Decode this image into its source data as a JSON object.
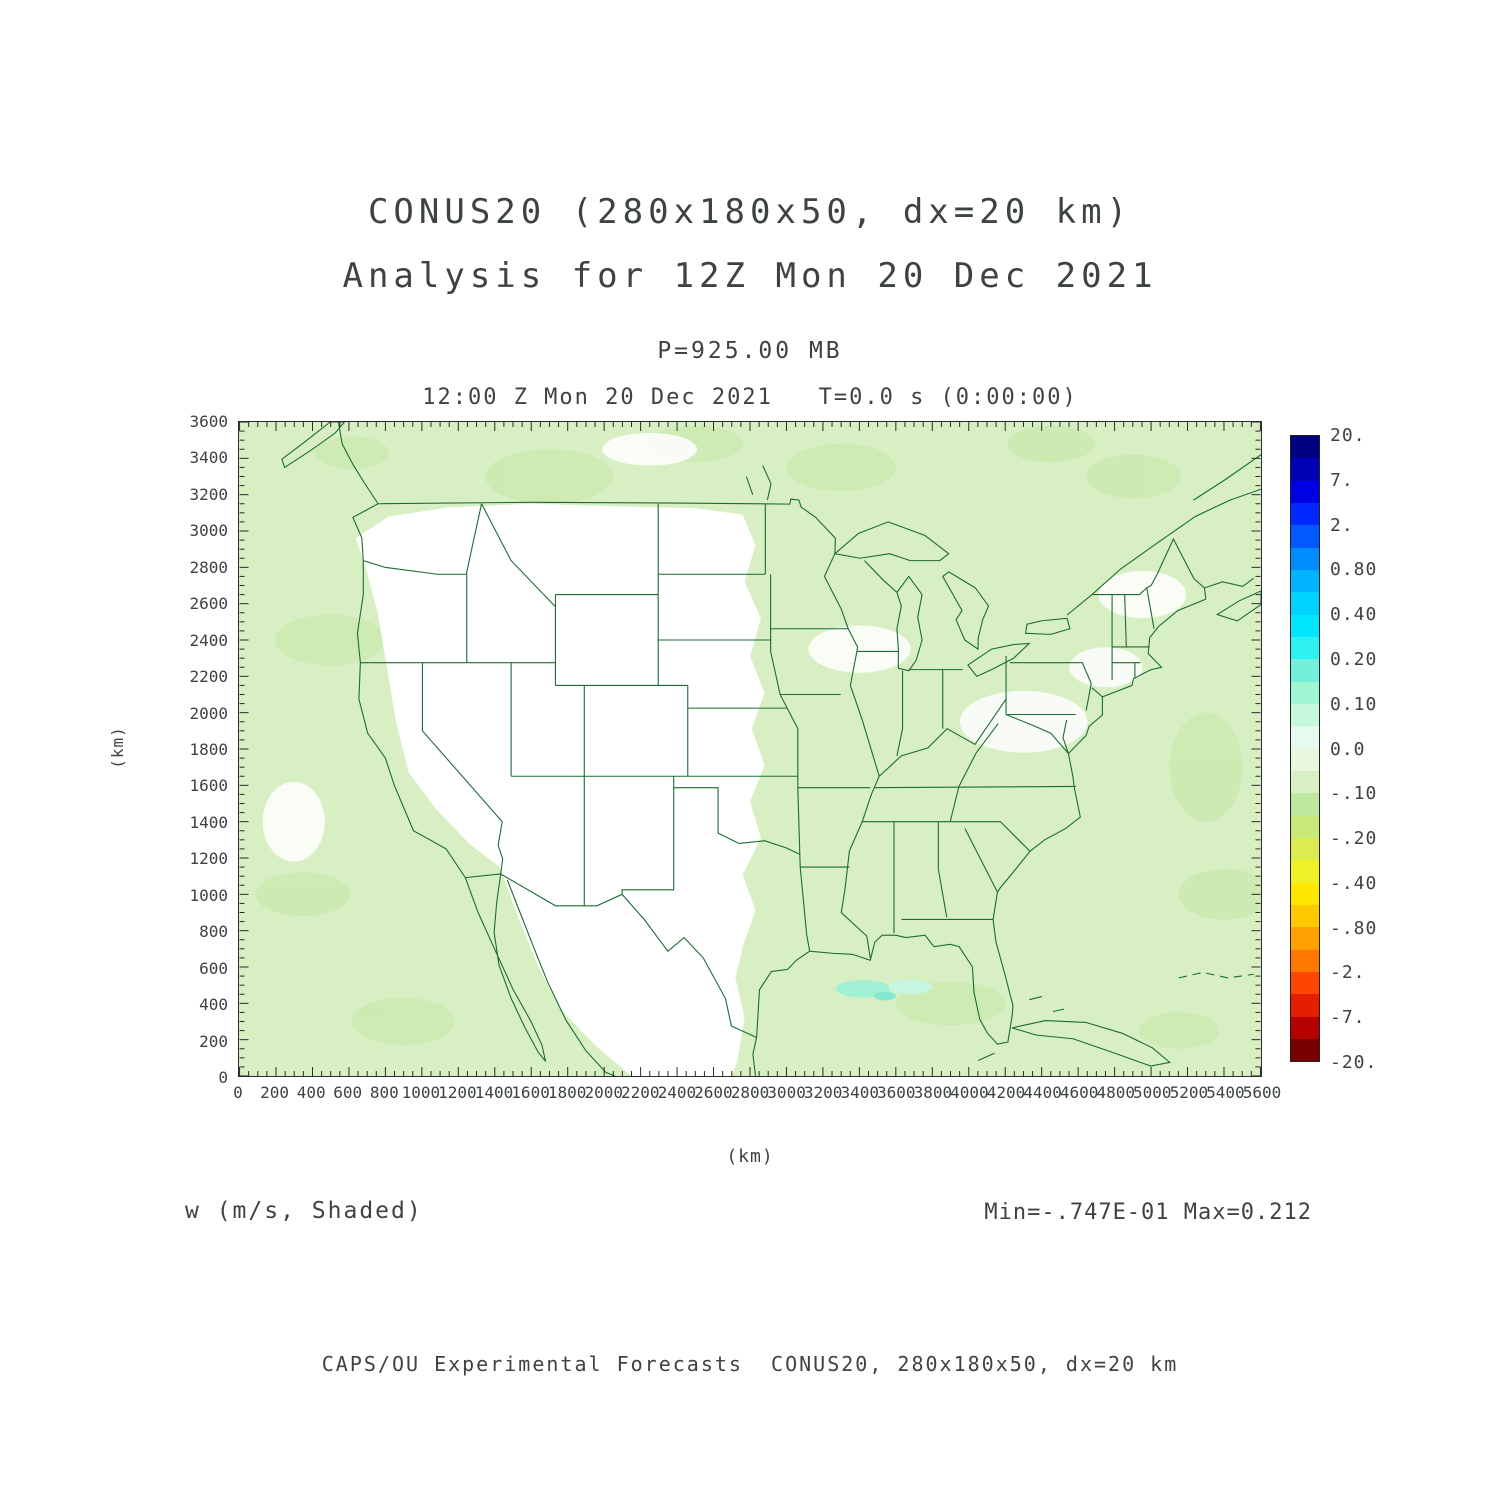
{
  "page": {
    "background": "#ffffff",
    "text_color": "#3d4440",
    "map_boundary_color": "#1b6b35"
  },
  "titles": {
    "line1": "CONUS20 (280x180x50, dx=20 km)",
    "line2": "Analysis for 12Z Mon 20 Dec 2021",
    "pressure_level": "P=925.00 MB",
    "time_line": "12:00 Z Mon 20 Dec 2021   T=0.0 s (0:00:00)"
  },
  "annotations": {
    "field_label": "w (m/s, Shaded)",
    "minmax": "Min=-.747E-01 Max=0.212"
  },
  "footer": {
    "credit": "CAPS/OU Experimental Forecasts  CONUS20, 280x180x50, dx=20 km"
  },
  "chart_data": {
    "type": "heatmap",
    "title": "CONUS20 (280x180x50, dx=20 km)",
    "subtitle": "Analysis for 12Z Mon 20 Dec 2021",
    "field": "w",
    "units": "m/s",
    "render_style": "Shaded",
    "pressure_level_mb": 925.0,
    "valid_time": "12:00 Z Mon 20 Dec 2021",
    "forecast_time": "T=0.0 s (0:00:00)",
    "grid": "280x180x50, dx=20 km",
    "min": -0.0747,
    "max": 0.212,
    "min_text": "-.747E-01",
    "max_text": "0.212",
    "x_axis": {
      "label": "(km)",
      "min": 0,
      "max": 5600,
      "tick_step": 200,
      "minor_step": 50,
      "ticks": [
        0,
        200,
        400,
        600,
        800,
        1000,
        1200,
        1400,
        1600,
        1800,
        2000,
        2200,
        2400,
        2600,
        2800,
        3000,
        3200,
        3400,
        3600,
        3800,
        4000,
        4200,
        4400,
        4600,
        4800,
        5000,
        5200,
        5400,
        5600
      ]
    },
    "y_axis": {
      "label": "(km)",
      "min": 0,
      "max": 3600,
      "tick_step": 200,
      "minor_step": 50,
      "ticks": [
        0,
        200,
        400,
        600,
        800,
        1000,
        1200,
        1400,
        1600,
        1800,
        2000,
        2200,
        2400,
        2600,
        2800,
        3000,
        3200,
        3400,
        3600
      ]
    },
    "colorbar": {
      "labels": [
        "20.",
        "7.",
        "2.",
        "0.80",
        "0.40",
        "0.20",
        "0.10",
        "0.0",
        "-.10",
        "-.20",
        "-.40",
        "-.80",
        "-2.",
        "-7.",
        "-20."
      ],
      "cell_colors": [
        "#000082",
        "#0000b4",
        "#0000e6",
        "#0028ff",
        "#005aff",
        "#008cff",
        "#00b4ff",
        "#00d2ff",
        "#00e6ff",
        "#2df0f0",
        "#73f0dc",
        "#a0f5d2",
        "#c8f8dc",
        "#e6fbee",
        "#ebf7dc",
        "#d7efc3",
        "#bee89e",
        "#c8e87a",
        "#dcec50",
        "#f0f028",
        "#ffe600",
        "#ffc800",
        "#ffa000",
        "#ff7800",
        "#ff4600",
        "#e61e00",
        "#b40000",
        "#780000"
      ]
    },
    "map": {
      "region": "CONUS with southern Canada, northern Mexico, Cuba",
      "boundary_color": "#1b6b35",
      "shade_near_zero_negative": "#d7efc3",
      "shade_slight_positive": "#ffffff",
      "shade_weak_positive_spots": "#9ff0d4"
    }
  }
}
